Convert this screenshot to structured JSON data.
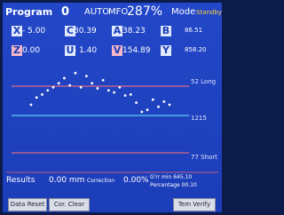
{
  "header": {
    "program_label": "Program",
    "program": "0",
    "auto": "AUTO",
    "mfo_label": "MFO",
    "mfo": "287%",
    "mode_label": "Mode",
    "mode": "Standby"
  },
  "axes": [
    {
      "letter": "X",
      "value": "- 5.00"
    },
    {
      "letter": "C",
      "value": "30.39"
    },
    {
      "letter": "A",
      "value": "38.23"
    },
    {
      "letter": "B",
      "value": "86.51"
    },
    {
      "letter": "Z",
      "value": "0.00"
    },
    {
      "letter": "U",
      "value": "- 1.40"
    },
    {
      "letter": "V",
      "value": "154.89"
    },
    {
      "letter": "Y",
      "value": "858.20"
    }
  ],
  "plot": {
    "long_label": "52 Long",
    "center_label": "1215",
    "short_label": "77 Short",
    "ylim": [
      0,
      100
    ],
    "color": "#ffffff",
    "values": [
      61,
      68,
      71,
      75,
      78,
      82,
      87,
      80,
      92,
      78,
      89,
      82,
      77,
      85,
      75,
      73,
      78,
      70,
      71,
      63,
      54,
      56,
      66,
      59,
      64,
      61
    ]
  },
  "footer": {
    "results": "Results",
    "result_value": "0.00 mm",
    "correction_label": "Correction",
    "correction": "0.00%",
    "grr": "G'rr min 645.10",
    "percentage": "Percentage 00.10"
  },
  "buttons": [
    "Data Reset",
    "Cor. Clear",
    "Tem Verify"
  ]
}
